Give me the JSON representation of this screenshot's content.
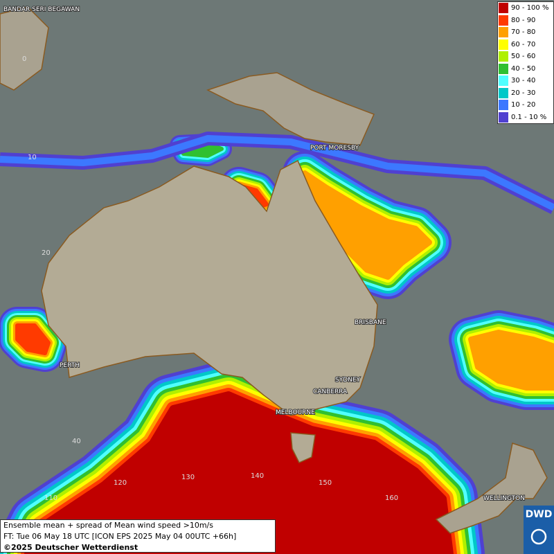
{
  "legend": {
    "items": [
      {
        "label": "90 - 100 %",
        "color": "#c00000"
      },
      {
        "label": "80 - 90",
        "color": "#ff3a00"
      },
      {
        "label": "70 - 80",
        "color": "#ffa000"
      },
      {
        "label": "60 - 70",
        "color": "#ffff00"
      },
      {
        "label": "50 - 60",
        "color": "#b0f000"
      },
      {
        "label": "40 - 50",
        "color": "#30c030"
      },
      {
        "label": "30 - 40",
        "color": "#50ffff"
      },
      {
        "label": "20 - 30",
        "color": "#00c8c8"
      },
      {
        "label": "10 - 20",
        "color": "#3c78ff"
      },
      {
        "label": "0.1 - 10 %",
        "color": "#5040d0"
      }
    ]
  },
  "places": [
    "BANDAR SERI BEGAWAN",
    "PORT MORESBY",
    "BRISBANE",
    "PERTH",
    "SYDNEY",
    "CANBERRA",
    "MELBOURNE",
    "WELLINGTON"
  ],
  "grid_labels": [
    "0",
    "10",
    "20",
    "40",
    "110",
    "120",
    "130",
    "140",
    "150",
    "160"
  ],
  "footer": {
    "lines": [
      "Ensemble mean + spread of Mean wind speed >10m/s",
      "FT: Tue 06 May 18 UTC [ICON EPS 2025 May 04 00UTC +66h]",
      "©2025 Deutscher Wetterdienst"
    ]
  },
  "logo": "DWD"
}
